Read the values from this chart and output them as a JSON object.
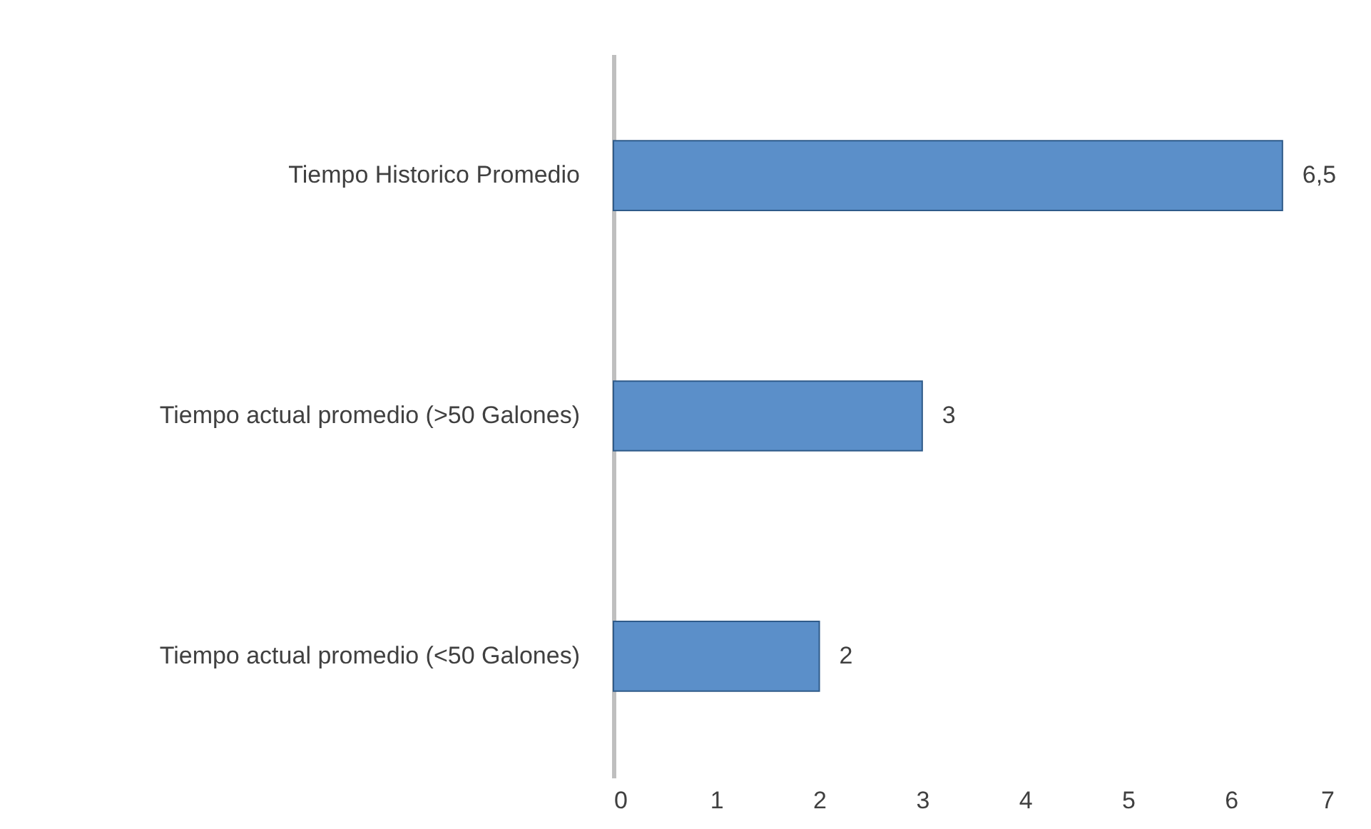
{
  "chart_data": {
    "type": "bar",
    "orientation": "horizontal",
    "categories": [
      "Tiempo Historico Promedio",
      "Tiempo actual promedio (>50 Galones)",
      "Tiempo actual promedio (<50 Galones)"
    ],
    "values": [
      6.5,
      3,
      2
    ],
    "value_labels": [
      "6,5",
      "3",
      "2"
    ],
    "color": "#5b8fc9",
    "xlim": [
      0,
      7
    ],
    "xticks": [
      0,
      1,
      2,
      3,
      4,
      5,
      6,
      7
    ],
    "grid": false
  }
}
